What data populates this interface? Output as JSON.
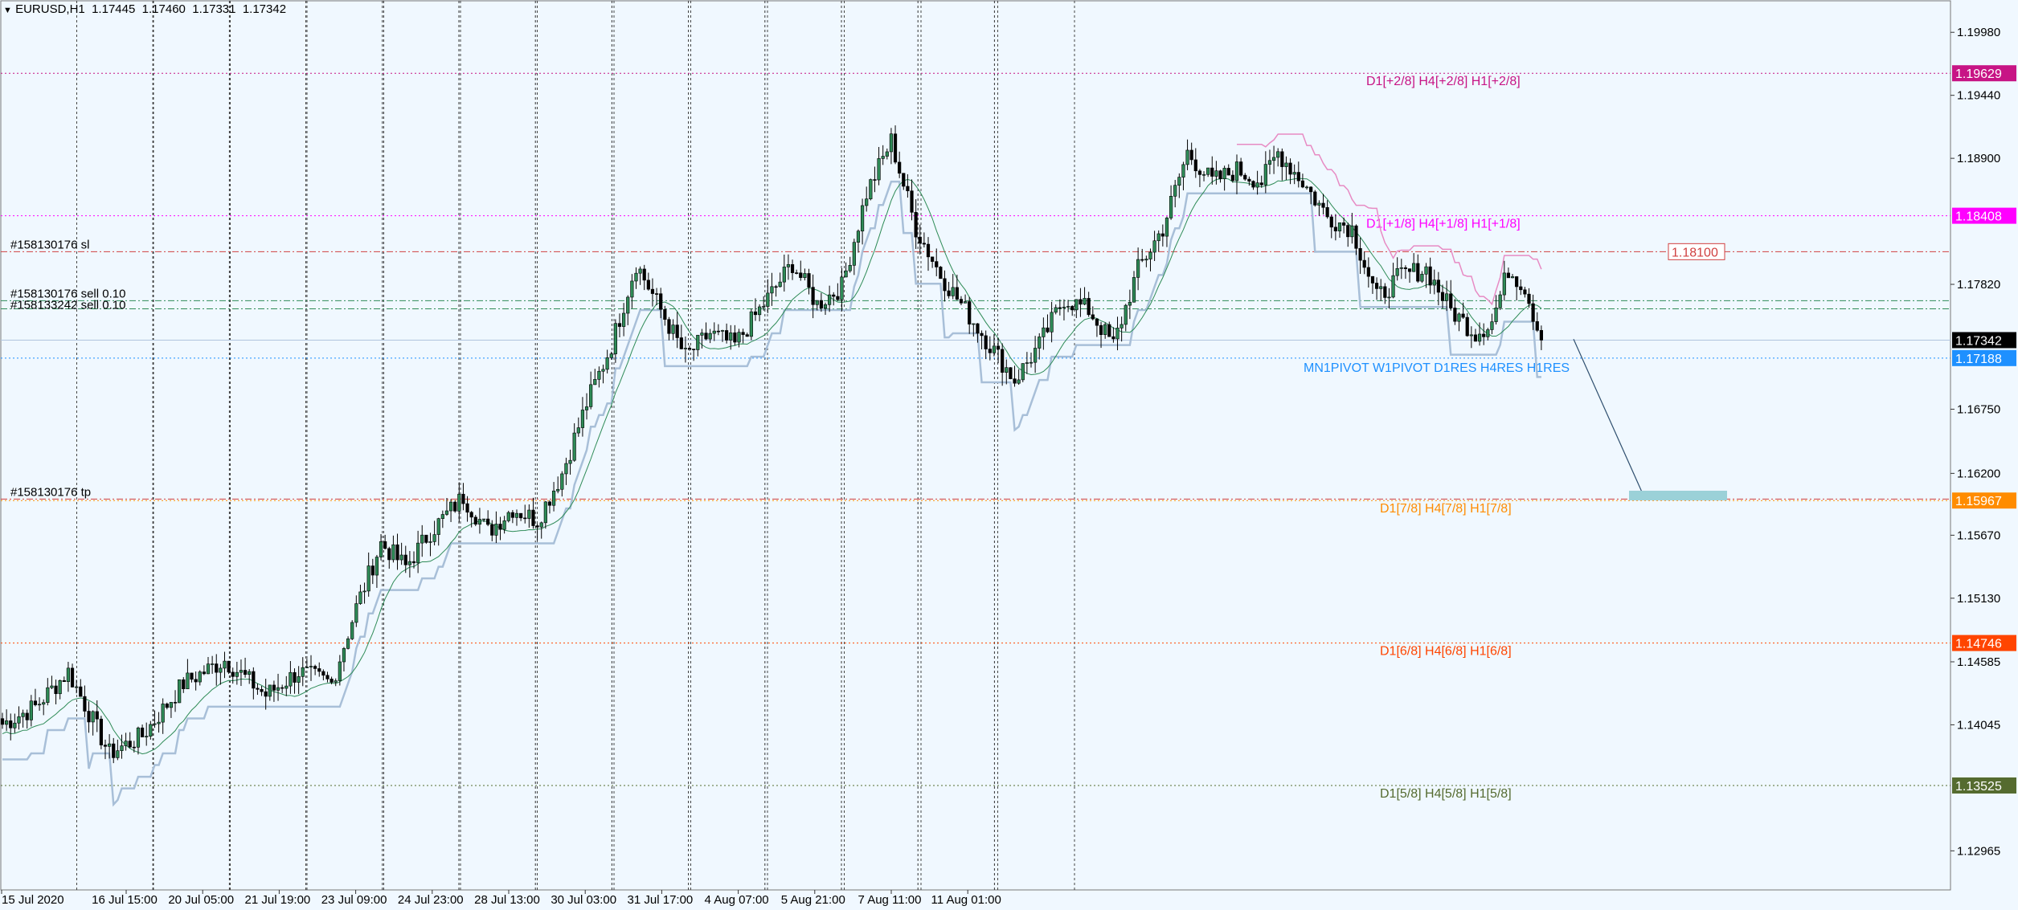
{
  "header": {
    "menu_icon": "triangle-down-icon",
    "symbol": "EURUSD,H1",
    "open": "1.17445",
    "high": "1.17460",
    "low": "1.17331",
    "close": "1.17342"
  },
  "chart_data": {
    "type": "candlestick",
    "symbol": "EURUSD",
    "timeframe": "H1",
    "x_tick_labels": [
      "15 Jul 2020",
      "16 Jul 15:00",
      "20 Jul 05:00",
      "21 Jul 19:00",
      "23 Jul 09:00",
      "24 Jul 23:00",
      "28 Jul 13:00",
      "30 Jul 03:00",
      "31 Jul 17:00",
      "4 Aug 07:00",
      "5 Aug 21:00",
      "7 Aug 11:00",
      "11 Aug 01:00"
    ],
    "y_tick_labels": [
      1.1998,
      1.1944,
      1.189,
      1.1782,
      1.1675,
      1.162,
      1.1567,
      1.1513,
      1.14585,
      1.14045,
      1.12965
    ],
    "ylim": [
      1.1263,
      1.2025
    ],
    "anchors": [
      [
        0,
        1.1405
      ],
      [
        8,
        1.142
      ],
      [
        16,
        1.145
      ],
      [
        26,
        1.138
      ],
      [
        34,
        1.1395
      ],
      [
        44,
        1.144
      ],
      [
        54,
        1.146
      ],
      [
        64,
        1.143
      ],
      [
        72,
        1.145
      ],
      [
        80,
        1.144
      ],
      [
        86,
        1.1505
      ],
      [
        92,
        1.156
      ],
      [
        98,
        1.154
      ],
      [
        104,
        1.157
      ],
      [
        112,
        1.16
      ],
      [
        118,
        1.157
      ],
      [
        124,
        1.159
      ],
      [
        130,
        1.158
      ],
      [
        136,
        1.162
      ],
      [
        142,
        1.168
      ],
      [
        148,
        1.173
      ],
      [
        154,
        1.18
      ],
      [
        160,
        1.176
      ],
      [
        166,
        1.172
      ],
      [
        172,
        1.174
      ],
      [
        178,
        1.173
      ],
      [
        186,
        1.177
      ],
      [
        192,
        1.18
      ],
      [
        198,
        1.1765
      ],
      [
        204,
        1.178
      ],
      [
        210,
        1.186
      ],
      [
        216,
        1.1905
      ],
      [
        222,
        1.183
      ],
      [
        228,
        1.179
      ],
      [
        234,
        1.176
      ],
      [
        240,
        1.173
      ],
      [
        246,
        1.17
      ],
      [
        252,
        1.173
      ],
      [
        258,
        1.177
      ],
      [
        264,
        1.176
      ],
      [
        270,
        1.173
      ],
      [
        276,
        1.1795
      ],
      [
        282,
        1.183
      ],
      [
        288,
        1.1895
      ],
      [
        294,
        1.187
      ],
      [
        300,
        1.188
      ],
      [
        306,
        1.187
      ],
      [
        310,
        1.1895
      ],
      [
        316,
        1.187
      ],
      [
        322,
        1.184
      ],
      [
        328,
        1.183
      ],
      [
        334,
        1.177
      ],
      [
        340,
        1.179
      ],
      [
        346,
        1.1795
      ],
      [
        352,
        1.176
      ],
      [
        358,
        1.174
      ],
      [
        362,
        1.175
      ],
      [
        366,
        1.1795
      ],
      [
        370,
        1.178
      ],
      [
        374,
        1.17342
      ]
    ],
    "price_axis_labels": [
      {
        "value": 1.19629,
        "text": "1.19629",
        "color": "#c71585",
        "label": "D1[+2/8] H4[+2/8] H1[+2/8]"
      },
      {
        "value": 1.18408,
        "text": "1.18408",
        "color": "#ff00ff",
        "label": "D1[+1/8] H4[+1/8] H1[+1/8]"
      },
      {
        "value": 1.17342,
        "text": "1.17342",
        "color": "#000000",
        "label": ""
      },
      {
        "value": 1.17188,
        "text": "1.17188",
        "color": "#1e90ff",
        "label": "MN1PIVOT W1PIVOT D1RES H4RES H1RES"
      },
      {
        "value": 1.15967,
        "text": "1.15967",
        "color": "#ff8c00",
        "label": "D1[7/8] H4[7/8] H1[7/8]"
      },
      {
        "value": 1.14746,
        "text": "1.14746",
        "color": "#ff4500",
        "label": "D1[6/8] H4[6/8] H1[6/8]"
      },
      {
        "value": 1.13525,
        "text": "1.13525",
        "color": "#556b2f",
        "label": "D1[5/8] H4[5/8] H1[5/8]"
      }
    ],
    "order_lines": [
      {
        "value": 1.181,
        "text": "#158130176 sl",
        "color": "#d04040"
      },
      {
        "value": 1.1768,
        "text": "#158130176 sell 0.10",
        "color": "#2e8b57"
      },
      {
        "value": 1.1761,
        "text": "#158133242 sell 0.10",
        "color": "#2e8b57"
      },
      {
        "value": 1.1598,
        "text": "#158130176 tp",
        "color": "#d04040"
      }
    ],
    "price_alert": {
      "value": 1.181,
      "text": "1.18100"
    },
    "target_box": {
      "value": 1.1601
    },
    "trend_line": {
      "from_value": 1.1735,
      "to_value": 1.1601
    }
  }
}
